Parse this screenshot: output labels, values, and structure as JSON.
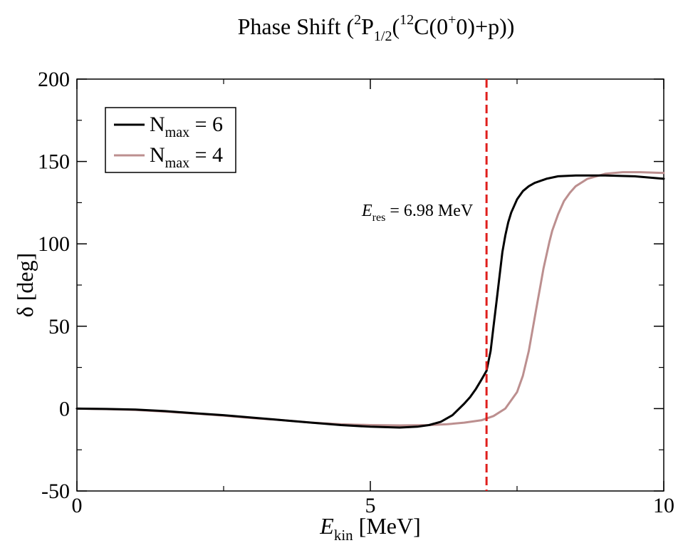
{
  "chart_data": {
    "type": "line",
    "title": {
      "prefix": "Phase Shift (",
      "sup1": "2",
      "main1": "P",
      "sub1": "1/2",
      "mid": "(",
      "sup2": "12",
      "main2": "C(0",
      "sup3": "+",
      "suffix": "0)+p))"
    },
    "xlabel": {
      "main": "E",
      "sub": "kin",
      "unit": " [MeV]"
    },
    "ylabel": "δ [deg]",
    "xlim": [
      0,
      10
    ],
    "ylim": [
      -50,
      200
    ],
    "x_ticks": [
      0,
      5,
      10
    ],
    "x_tick_labels": [
      "0",
      "5",
      "10"
    ],
    "x_minor_ticks": [
      2.5,
      7.5
    ],
    "y_ticks": [
      -50,
      0,
      50,
      100,
      150,
      200
    ],
    "y_tick_labels": [
      "-50",
      "0",
      "50",
      "100",
      "150",
      "200"
    ],
    "y_minor_ticks": [
      -25,
      25,
      75,
      125,
      175
    ],
    "grid": false,
    "legend_position": "top-left",
    "series": [
      {
        "name": {
          "main": "N",
          "sub": "max",
          "value": " = 6"
        },
        "color": "#000000",
        "x": [
          0,
          0.5,
          1,
          1.5,
          2,
          2.5,
          3,
          3.5,
          4,
          4.5,
          5,
          5.5,
          5.8,
          6.0,
          6.2,
          6.4,
          6.6,
          6.7,
          6.8,
          6.9,
          6.98,
          7.05,
          7.1,
          7.15,
          7.2,
          7.25,
          7.3,
          7.35,
          7.4,
          7.5,
          7.6,
          7.7,
          7.8,
          8.0,
          8.2,
          8.5,
          9.0,
          9.5,
          10.0
        ],
        "y": [
          0,
          -0.2,
          -0.6,
          -1.5,
          -2.8,
          -4,
          -5.5,
          -7,
          -8.5,
          -10,
          -11,
          -11.5,
          -11,
          -10,
          -8,
          -4,
          3,
          7,
          12,
          18,
          23,
          35,
          50,
          65,
          80,
          95,
          105,
          113,
          119,
          127,
          132,
          135,
          137,
          139.5,
          141,
          141.5,
          141.5,
          141,
          139.5
        ]
      },
      {
        "name": {
          "main": "N",
          "sub": "max",
          "value": " = 4"
        },
        "color": "#bc8f8f",
        "x": [
          0,
          0.5,
          1,
          1.5,
          2,
          2.5,
          3,
          3.5,
          4,
          4.5,
          5,
          5.5,
          6,
          6.3,
          6.6,
          6.9,
          7.1,
          7.3,
          7.5,
          7.6,
          7.7,
          7.8,
          7.85,
          7.9,
          7.95,
          8.0,
          8.05,
          8.1,
          8.2,
          8.3,
          8.4,
          8.5,
          8.7,
          9.0,
          9.3,
          9.6,
          10.0
        ],
        "y": [
          0,
          -0.3,
          -0.8,
          -1.8,
          -3,
          -4.3,
          -5.8,
          -7,
          -8.5,
          -9.5,
          -10,
          -10.2,
          -10,
          -9.5,
          -8.5,
          -7,
          -4.5,
          0,
          10,
          20,
          35,
          55,
          65,
          75,
          85,
          93,
          101,
          108,
          118,
          126,
          131,
          135,
          139.5,
          142.5,
          143.5,
          143.5,
          143
        ]
      }
    ],
    "annotations": [
      {
        "type": "vline",
        "x": 6.98,
        "color": "#e0201d",
        "style": "dashed"
      },
      {
        "type": "label",
        "main": "E",
        "sub": "res",
        "text": " = 6.98 MeV",
        "x": 6.75,
        "y": 117,
        "anchor": "end"
      }
    ]
  }
}
